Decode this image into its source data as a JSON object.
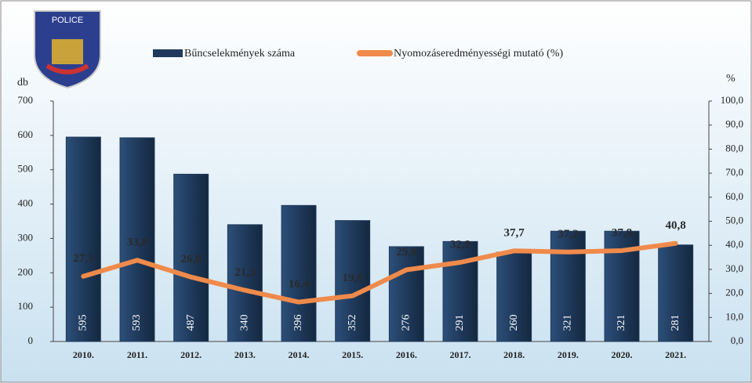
{
  "logo": "POLICE",
  "chart_data": {
    "type": "bar",
    "categories": [
      "2010.",
      "2011.",
      "2012.",
      "2013.",
      "2014.",
      "2015.",
      "2016.",
      "2017.",
      "2018.",
      "2019.",
      "2020.",
      "2021."
    ],
    "series": [
      {
        "name": "Bűncselekmények száma",
        "type": "bar",
        "color": "#1f3a5c",
        "values": [
          595,
          593,
          487,
          340,
          396,
          352,
          276,
          291,
          260,
          321,
          321,
          281
        ]
      },
      {
        "name": "Nyomozáseredményességi mutató (%)",
        "type": "line",
        "axis": "y2",
        "color": "#f08a4b",
        "values": [
          27.1,
          33.8,
          26.8,
          21.3,
          16.4,
          19.0,
          29.8,
          32.9,
          37.7,
          37.2,
          37.8,
          40.8
        ],
        "value_labels": [
          "27,1",
          "33,8",
          "26,8",
          "21,3",
          "16,4",
          "19,0",
          "29,8",
          "32,9",
          "37,7",
          "37,2",
          "37,8",
          "40,8"
        ]
      }
    ],
    "ylabel": "db",
    "y2label": "%",
    "ylim": [
      0,
      700
    ],
    "yticks": [
      0,
      100,
      200,
      300,
      400,
      500,
      600,
      700
    ],
    "y2lim": [
      0,
      100
    ],
    "y2ticks": [
      {
        "value": 0,
        "label": "0,0"
      },
      {
        "value": 10,
        "label": "10,0"
      },
      {
        "value": 20,
        "label": "20,0"
      },
      {
        "value": 30,
        "label": "30,0"
      },
      {
        "value": 40,
        "label": "40,0"
      },
      {
        "value": 50,
        "label": "50,0"
      },
      {
        "value": 60,
        "label": "60,0"
      },
      {
        "value": 70,
        "label": "70,0"
      },
      {
        "value": 80,
        "label": "80,0"
      },
      {
        "value": 90,
        "label": "90,0"
      },
      {
        "value": 100,
        "label": "100,0"
      }
    ],
    "grid": false
  }
}
